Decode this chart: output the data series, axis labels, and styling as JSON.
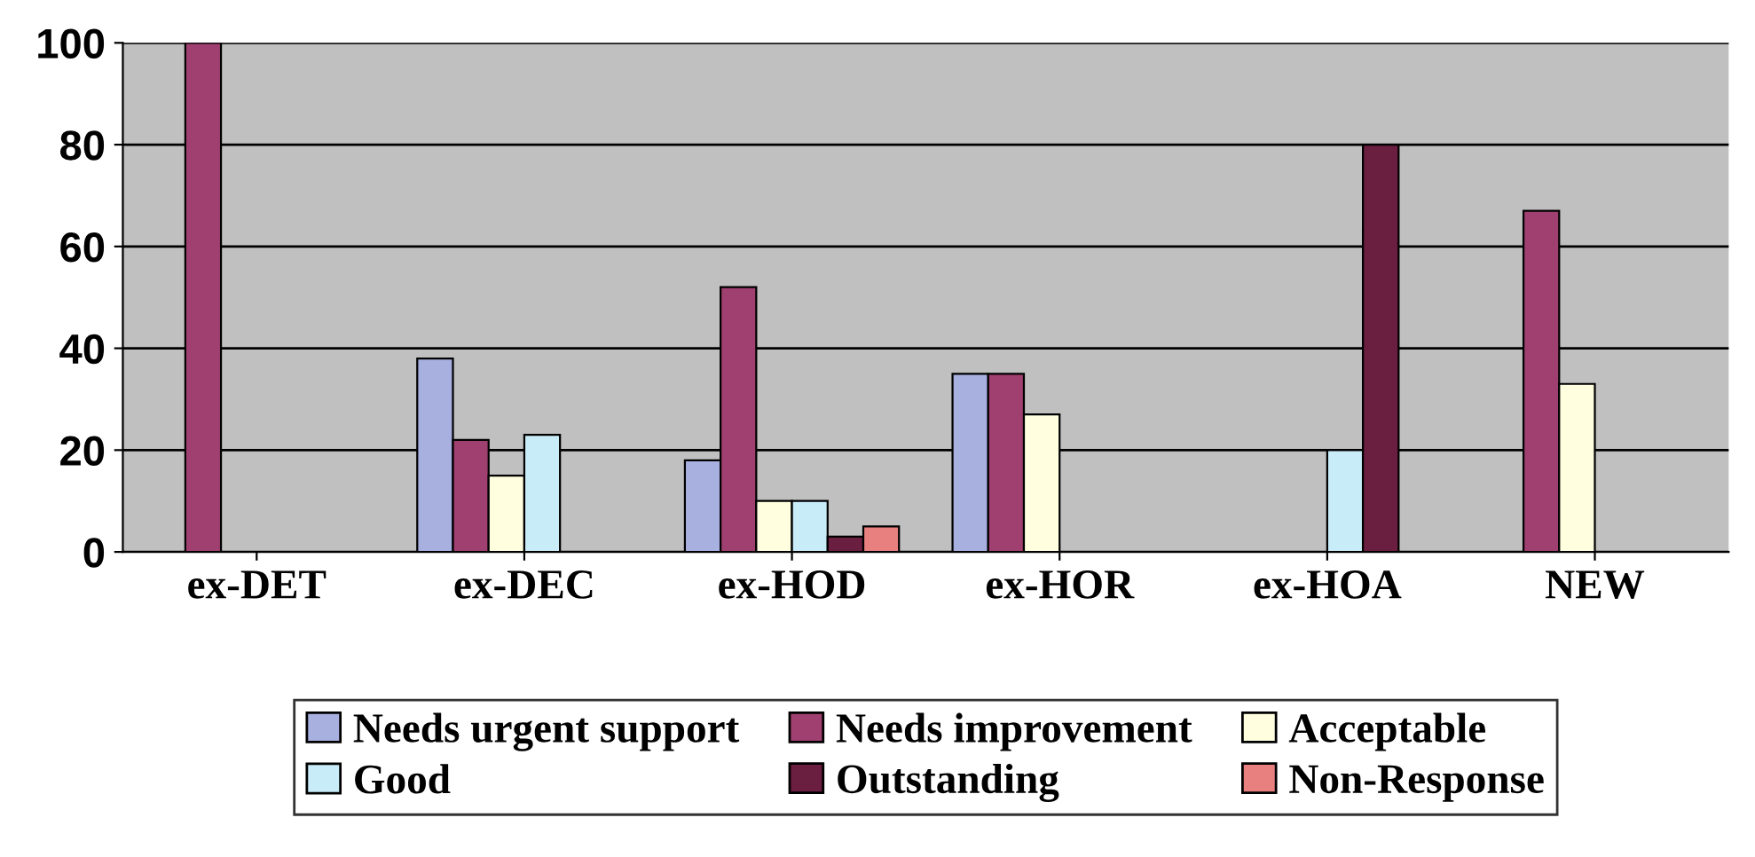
{
  "chart_data": {
    "type": "bar",
    "categories": [
      "ex-DET",
      "ex-DEC",
      "ex-HOD",
      "ex-HOR",
      "ex-HOA",
      "NEW"
    ],
    "series": [
      {
        "name": "Needs urgent support",
        "color": "#a8b0e0",
        "values": [
          0,
          38,
          18,
          35,
          0,
          0
        ]
      },
      {
        "name": "Needs improvement",
        "color": "#a04070",
        "values": [
          100,
          22,
          52,
          35,
          0,
          67
        ]
      },
      {
        "name": "Acceptable",
        "color": "#ffffe0",
        "values": [
          0,
          15,
          10,
          27,
          0,
          33
        ]
      },
      {
        "name": "Good",
        "color": "#c8ecf8",
        "values": [
          0,
          23,
          10,
          0,
          20,
          0
        ]
      },
      {
        "name": "Outstanding",
        "color": "#6a1e40",
        "values": [
          0,
          0,
          3,
          0,
          80,
          0
        ]
      },
      {
        "name": "Non-Response",
        "color": "#e88080",
        "values": [
          0,
          0,
          5,
          0,
          0,
          0
        ]
      }
    ],
    "ylim": [
      0,
      100
    ],
    "yticks": [
      0,
      20,
      40,
      60,
      80,
      100
    ],
    "grid": "y",
    "legend": "bottom"
  }
}
